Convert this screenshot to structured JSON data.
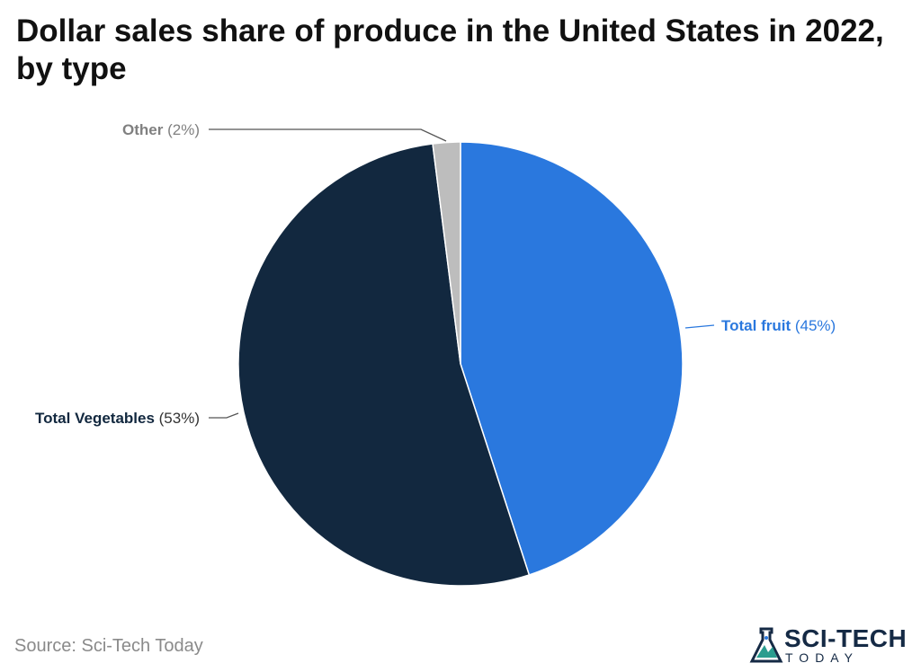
{
  "chart_data": {
    "type": "pie",
    "title": "Dollar sales share of produce in the United States in 2022, by type",
    "slices": [
      {
        "label": "Total fruit",
        "value": 45,
        "value_text": "(45%)",
        "color": "#2a78de",
        "label_color": "#2a78de"
      },
      {
        "label": "Total Vegetables",
        "value": 53,
        "value_text": "(53%)",
        "color": "#12283f",
        "label_color": "#12283f"
      },
      {
        "label": "Other",
        "value": 2,
        "value_text": "(2%)",
        "color": "#bdbdbd",
        "label_color": "#808080"
      }
    ]
  },
  "source": "Source: Sci-Tech Today",
  "logo": {
    "main": "SCI-TECH",
    "sub": "TODAY",
    "icon": "flask-icon"
  }
}
